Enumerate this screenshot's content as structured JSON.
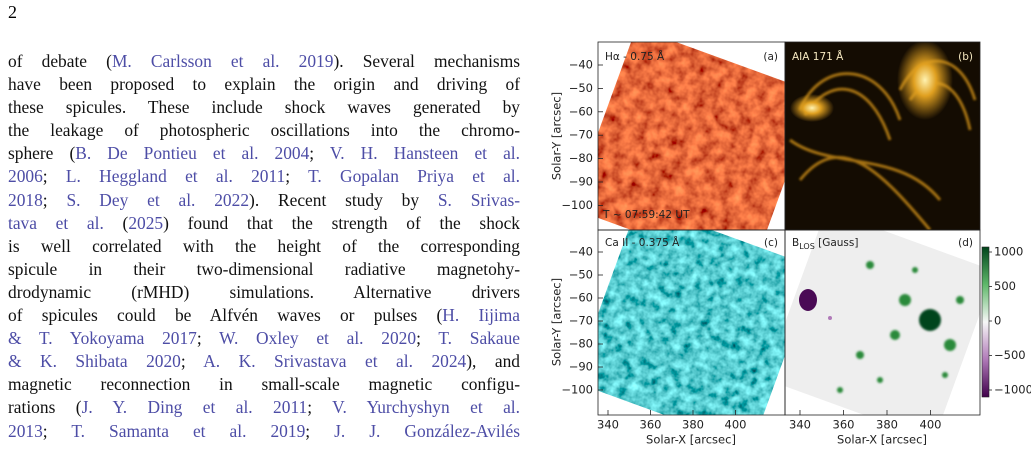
{
  "page_number": "2",
  "body": {
    "lines": [
      [
        "of debate (",
        {
          "text": "M. Carlsson et al. 2019",
          "cite": true
        },
        "). Several mechanisms"
      ],
      [
        "have been proposed to explain the origin and driving of"
      ],
      [
        "these spicules. These include shock waves generated by"
      ],
      [
        "the leakage of photospheric oscillations into the chromo-"
      ],
      [
        "sphere (",
        {
          "text": "B. De Pontieu et al. 2004",
          "cite": true
        },
        "; ",
        {
          "text": "V. H. Hansteen et al.",
          "cite": true
        }
      ],
      [
        {
          "text": "2006",
          "cite": true
        },
        "; ",
        {
          "text": "L. Heggland et al. 2011",
          "cite": true
        },
        "; ",
        {
          "text": "T. Gopalan Priya et al.",
          "cite": true
        }
      ],
      [
        {
          "text": "2018",
          "cite": true
        },
        "; ",
        {
          "text": "S. Dey et al. 2022",
          "cite": true
        },
        ").  Recent study by ",
        {
          "text": "S. Srivas-",
          "cite": true
        }
      ],
      [
        {
          "text": "tava et al.",
          "cite": true
        },
        " (",
        {
          "text": "2025",
          "cite": true
        },
        ") found that the strength of the shock"
      ],
      [
        "is well correlated with the height of the corresponding"
      ],
      [
        "spicule in their two-dimensional radiative magnetohy-"
      ],
      [
        "drodynamic (rMHD) simulations.  Alternative drivers"
      ],
      [
        "of spicules could be Alfvén waves or pulses (",
        {
          "text": "H. Iijima",
          "cite": true
        }
      ],
      [
        {
          "text": "& T. Yokoyama 2017",
          "cite": true
        },
        "; ",
        {
          "text": "W. Oxley et al. 2020",
          "cite": true
        },
        "; ",
        {
          "text": "T. Sakaue",
          "cite": true
        }
      ],
      [
        {
          "text": "& K. Shibata 2020",
          "cite": true
        },
        "; ",
        {
          "text": "A. K. Srivastava et al. 2024",
          "cite": true
        },
        "), and"
      ],
      [
        "magnetic reconnection in small-scale magnetic configu-"
      ],
      [
        "rations (",
        {
          "text": "J. Y. Ding et al. 2011",
          "cite": true
        },
        "; ",
        {
          "text": "V. Yurchyshyn et al.",
          "cite": true
        }
      ],
      [
        {
          "text": "2013",
          "cite": true
        },
        "; ",
        {
          "text": "T. Samanta et al. 2019",
          "cite": true
        },
        "; ",
        {
          "text": "J. J. González-Avilés",
          "cite": true
        }
      ]
    ]
  },
  "figure": {
    "panels": [
      {
        "label": "(a)",
        "title": "Hα - 0.75 Å",
        "note": "T ~ 07:59:42 UT"
      },
      {
        "label": "(b)",
        "title": "AIA 171 Å"
      },
      {
        "label": "(c)",
        "title": "Ca II - 0.375 Å"
      },
      {
        "label": "(d)",
        "title": {
          "base": "B",
          "sub": "LOS",
          "rest": " [Gauss]"
        }
      }
    ],
    "y_axis_label": "Solar-Y [arcsec]",
    "x_axis_label": "Solar-X [arcsec]",
    "y_ticks": [
      "−40",
      "−50",
      "−60",
      "−70",
      "−80",
      "−90",
      "−100"
    ],
    "x_ticks": [
      "340",
      "360",
      "380",
      "400"
    ],
    "colorbar_ticks": [
      "1000",
      "500",
      "0",
      "−500",
      "−1000"
    ]
  }
}
